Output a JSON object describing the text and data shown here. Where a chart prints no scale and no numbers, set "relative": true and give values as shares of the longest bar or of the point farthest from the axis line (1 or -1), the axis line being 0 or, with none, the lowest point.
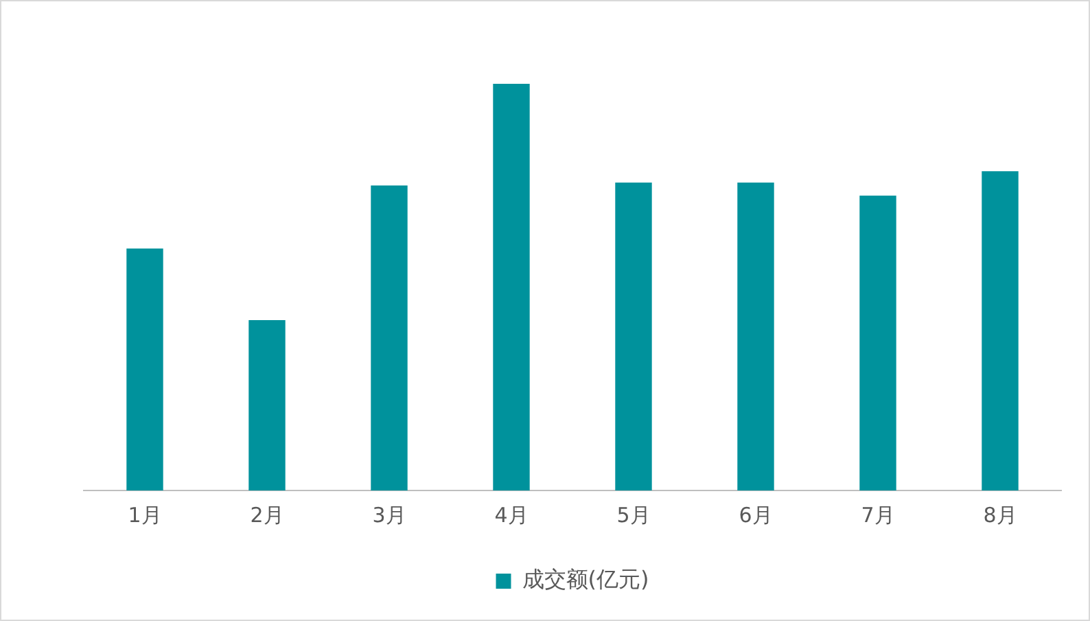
{
  "chart_data": {
    "type": "bar",
    "relative": true,
    "categories": [
      "1月",
      "2月",
      "3月",
      "4月",
      "5月",
      "6月",
      "7月",
      "8月"
    ],
    "series": [
      {
        "name": "成交额(亿元)",
        "color": "#00929c",
        "values": [
          0.595,
          0.419,
          0.75,
          1,
          0.757,
          0.757,
          0.725,
          0.785
        ]
      }
    ],
    "grid": false,
    "legend": "bottom"
  }
}
